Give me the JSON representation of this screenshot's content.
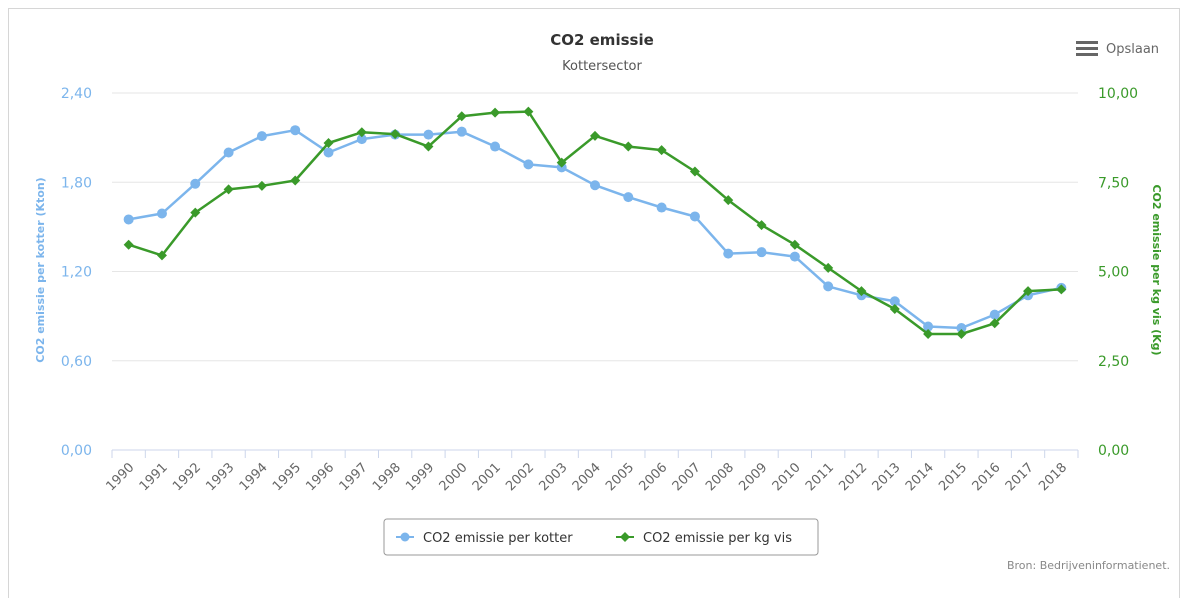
{
  "chart_data": {
    "type": "line",
    "title": "CO2 emissie",
    "subtitle": "Kottersector",
    "categories": [
      "1990",
      "1991",
      "1992",
      "1993",
      "1994",
      "1995",
      "1996",
      "1997",
      "1998",
      "1999",
      "2000",
      "2001",
      "2002",
      "2003",
      "2004",
      "2005",
      "2006",
      "2007",
      "2008",
      "2009",
      "2010",
      "2011",
      "2012",
      "2013",
      "2014",
      "2015",
      "2016",
      "2017",
      "2018"
    ],
    "y_left": {
      "label": "CO2 emissie per kotter (Kton)",
      "range": [
        0,
        2.4
      ],
      "ticks": [
        "0,00",
        "0,60",
        "1,20",
        "1,80",
        "2,40"
      ],
      "color": "#7cb5ec"
    },
    "y_right": {
      "label": "CO2 emissie per kg vis (Kg)",
      "range": [
        0,
        10
      ],
      "ticks": [
        "0,00",
        "2,50",
        "5,00",
        "7,50",
        "10,00"
      ],
      "color": "#3a9a2a"
    },
    "series": [
      {
        "name": "CO2 emissie per kotter",
        "axis": "left",
        "color": "#7cb5ec",
        "marker": "circle",
        "values": [
          1.55,
          1.59,
          1.79,
          2.0,
          2.11,
          2.15,
          2.0,
          2.09,
          2.12,
          2.12,
          2.14,
          2.04,
          1.92,
          1.9,
          1.78,
          1.7,
          1.63,
          1.57,
          1.32,
          1.33,
          1.3,
          1.1,
          1.04,
          1.0,
          0.83,
          0.82,
          0.91,
          1.04,
          1.09
        ]
      },
      {
        "name": "CO2 emissie per kg vis",
        "axis": "right",
        "color": "#3a9a2a",
        "marker": "diamond",
        "values": [
          5.75,
          5.45,
          6.65,
          7.3,
          7.4,
          7.55,
          8.6,
          8.9,
          8.85,
          8.5,
          9.35,
          9.45,
          9.48,
          8.05,
          8.8,
          8.5,
          8.4,
          7.8,
          7.0,
          6.3,
          5.75,
          5.1,
          4.45,
          3.95,
          3.25,
          3.25,
          3.55,
          4.45,
          4.5
        ]
      }
    ],
    "legend_position": "bottom-center",
    "grid": true,
    "credits": "Bron: Bedrijveninformatienet.",
    "menu": {
      "label": "Opslaan",
      "icon": "hamburger-menu-icon"
    }
  }
}
